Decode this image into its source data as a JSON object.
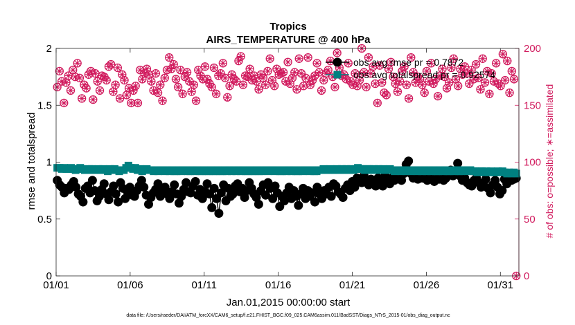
{
  "chart_data": {
    "type": "line",
    "title": "Tropics",
    "subtitle": "AIRS_TEMPERATURE @ 400 hPa",
    "xlabel": "Jan.01,2015 00:00:00 start",
    "ylabel": "rmse and totalspread",
    "ylabel_right": "# of obs: o=possible; ∗=assimilated",
    "x_ticks": [
      "01/01",
      "01/06",
      "01/11",
      "01/16",
      "01/21",
      "01/26",
      "01/31"
    ],
    "x_tick_days": [
      1,
      6,
      11,
      16,
      21,
      26,
      31
    ],
    "xlim": [
      1,
      32.25
    ],
    "y_ticks": [
      "0",
      "0.5",
      "1",
      "1.5",
      "2"
    ],
    "ylim": [
      0,
      2
    ],
    "y2_ticks": [
      "0",
      "50",
      "100",
      "150",
      "200"
    ],
    "y2lim": [
      0,
      200
    ],
    "legend_position": "top-right",
    "footnote": "data file: /Users/raeder/DAI/ATM_forcXX/CAM6_setup/f.e21.FHIST_BGC.f09_025.CAM6assim.011/BadSST/Diags_NTrS_2015-01/obs_diag_output.nc",
    "series": [
      {
        "name": "obs avg rmse pr = 0.7872",
        "axis": "left",
        "color": "#000000",
        "marker": "filled-circle",
        "values": [
          0.84,
          0.8,
          0.78,
          0.73,
          0.77,
          0.76,
          0.8,
          0.83,
          0.78,
          0.72,
          0.7,
          0.65,
          0.77,
          0.79,
          0.73,
          0.84,
          0.75,
          0.66,
          0.7,
          0.76,
          0.81,
          0.72,
          0.67,
          0.74,
          0.79,
          0.72,
          0.65,
          0.82,
          0.77,
          0.68,
          0.74,
          0.78,
          0.71,
          0.7,
          0.75,
          0.79,
          0.84,
          0.78,
          0.71,
          0.63,
          0.69,
          0.73,
          0.76,
          0.81,
          0.7,
          0.75,
          0.78,
          0.72,
          0.68,
          0.74,
          0.8,
          0.72,
          0.64,
          0.7,
          0.76,
          0.82,
          0.74,
          0.73,
          0.79,
          0.83,
          0.71,
          0.76,
          0.68,
          0.74,
          0.81,
          0.72,
          0.6,
          0.77,
          0.68,
          0.55,
          0.73,
          0.8,
          0.66,
          0.77,
          0.7,
          0.72,
          0.79,
          0.81,
          0.74,
          0.77,
          0.69,
          0.75,
          0.82,
          0.77,
          0.72,
          0.69,
          0.63,
          0.75,
          0.8,
          0.71,
          0.82,
          0.77,
          0.68,
          0.79,
          0.73,
          0.61,
          0.7,
          0.66,
          0.73,
          0.78,
          0.68,
          0.75,
          0.7,
          0.62,
          0.72,
          0.77,
          0.68,
          0.75,
          0.7,
          0.73,
          0.65,
          0.78,
          0.72,
          0.68,
          0.75,
          0.72,
          0.78,
          0.7,
          0.81,
          0.79,
          0.74,
          0.72,
          0.69,
          0.77,
          0.8,
          0.75,
          0.83,
          0.78,
          0.86,
          0.84,
          0.82,
          0.88,
          0.84,
          0.8,
          0.85,
          0.83,
          0.79,
          0.86,
          0.82,
          0.79,
          0.88,
          0.85,
          0.81,
          0.86,
          0.84,
          0.88,
          0.86,
          0.84,
          0.9,
          0.98,
          1.01,
          0.9,
          0.86,
          0.88,
          0.85,
          0.9,
          0.86,
          0.88,
          0.84,
          0.86,
          0.87,
          0.83,
          0.89,
          0.85,
          0.87,
          0.84,
          0.86,
          0.9,
          0.93,
          0.88,
          0.92,
          0.99,
          0.88,
          0.84,
          0.86,
          0.82,
          0.8,
          0.79,
          0.84,
          0.86,
          0.82,
          0.78,
          0.81,
          0.85,
          0.77,
          0.73,
          0.8,
          0.84,
          0.78,
          0.72,
          0.75,
          0.85,
          0.81,
          0.88,
          0.84,
          0.85,
          0.86
        ]
      },
      {
        "name": "obs avg totalspread pr = 0.92574",
        "axis": "left",
        "color": "#008080",
        "marker": "filled-square",
        "values": [
          0.95,
          0.95,
          0.94,
          0.95,
          0.94,
          0.94,
          0.95,
          0.94,
          0.93,
          0.94,
          0.95,
          0.94,
          0.93,
          0.93,
          0.94,
          0.94,
          0.93,
          0.93,
          0.94,
          0.93,
          0.94,
          0.93,
          0.92,
          0.94,
          0.93,
          0.94,
          0.93,
          0.92,
          0.93,
          0.93,
          0.95,
          0.97,
          0.95,
          0.94,
          0.95,
          0.93,
          0.94,
          0.92,
          0.93,
          0.94,
          0.93,
          0.93,
          0.92,
          0.93,
          0.92,
          0.93,
          0.93,
          0.92,
          0.93,
          0.92,
          0.93,
          0.92,
          0.92,
          0.93,
          0.92,
          0.93,
          0.93,
          0.92,
          0.92,
          0.93,
          0.92,
          0.93,
          0.92,
          0.92,
          0.93,
          0.92,
          0.92,
          0.93,
          0.92,
          0.92,
          0.93,
          0.92,
          0.92,
          0.93,
          0.92,
          0.93,
          0.92,
          0.93,
          0.92,
          0.93,
          0.92,
          0.93,
          0.92,
          0.92,
          0.93,
          0.92,
          0.92,
          0.93,
          0.92,
          0.92,
          0.93,
          0.93,
          0.92,
          0.93,
          0.93,
          0.92,
          0.93,
          0.92,
          0.92,
          0.93,
          0.92,
          0.93,
          0.92,
          0.93,
          0.92,
          0.92,
          0.93,
          0.92,
          0.93,
          0.93,
          0.92,
          0.93,
          0.92,
          0.92,
          0.93,
          0.93,
          0.94,
          0.93,
          0.93,
          0.94,
          0.93,
          0.93,
          0.94,
          0.93,
          0.94,
          0.93,
          0.94,
          0.93,
          0.94,
          0.93,
          0.94,
          0.95,
          0.94,
          0.94,
          0.93,
          0.94,
          0.94,
          0.93,
          0.94,
          0.93,
          0.94,
          0.93,
          0.94,
          0.93,
          0.93,
          0.94,
          0.93,
          0.92,
          0.93,
          0.93,
          0.92,
          0.93,
          0.92,
          0.93,
          0.92,
          0.93,
          0.93,
          0.92,
          0.93,
          0.92,
          0.93,
          0.92,
          0.93,
          0.92,
          0.93,
          0.92,
          0.92,
          0.93,
          0.92,
          0.93,
          0.92,
          0.92,
          0.93,
          0.92,
          0.93,
          0.92,
          0.92,
          0.93,
          0.93,
          0.92,
          0.93,
          0.92,
          0.92,
          0.91,
          0.92,
          0.92,
          0.91,
          0.92,
          0.91,
          0.92,
          0.91,
          0.91,
          0.92,
          0.91,
          0.92,
          0.91,
          0.9,
          0.91,
          0.9,
          0.91,
          0.9
        ]
      },
      {
        "name": "# obs possible",
        "axis": "right",
        "color": "#d11b5e",
        "marker": "circle",
        "values": [
          166,
          180,
          171,
          152,
          170,
          176,
          163,
          181,
          175,
          187,
          174,
          156,
          168,
          165,
          177,
          180,
          155,
          178,
          171,
          163,
          176,
          175,
          172,
          184,
          186,
          162,
          168,
          183,
          156,
          177,
          172,
          159,
          165,
          152,
          163,
          167,
          152,
          181,
          173,
          178,
          182,
          177,
          171,
          163,
          178,
          161,
          168,
          154,
          174,
          181,
          192,
          182,
          186,
          173,
          166,
          181,
          160,
          175,
          179,
          171,
          162,
          168,
          154,
          181,
          176,
          173,
          184,
          173,
          169,
          166,
          183,
          160,
          176,
          178,
          187,
          174,
          157,
          167,
          177,
          173,
          171,
          189,
          193,
          168,
          176,
          175,
          182,
          172,
          176,
          171,
          164,
          177,
          174,
          168,
          180,
          191,
          172,
          167,
          182,
          177,
          178,
          179,
          171,
          188,
          169,
          174,
          179,
          164,
          191,
          178,
          167,
          174,
          192,
          168,
          172,
          176,
          187,
          179,
          163,
          172,
          178,
          181,
          189,
          175,
          166,
          196,
          183,
          176,
          177,
          173,
          187,
          171,
          168,
          178,
          167,
          172,
          200,
          179,
          166,
          192,
          178,
          184,
          169,
          152,
          185,
          170,
          161,
          159,
          182,
          188,
          175,
          169,
          162,
          171,
          180,
          184,
          168,
          156,
          192,
          179,
          170,
          175,
          173,
          168,
          161,
          180,
          171,
          187,
          169,
          173,
          158,
          176,
          182,
          175,
          165,
          170,
          183,
          191,
          173,
          167,
          182,
          177,
          184,
          178,
          169,
          181,
          173,
          186,
          174,
          164,
          191,
          170,
          180,
          160,
          178,
          171,
          187,
          169,
          167,
          195,
          172,
          189,
          161,
          180,
          173,
          0
        ]
      },
      {
        "name": "# obs assimilated",
        "axis": "right",
        "color": "#d11b5e",
        "marker": "asterisk",
        "values": [
          166,
          180,
          171,
          152,
          170,
          176,
          163,
          181,
          175,
          187,
          174,
          156,
          168,
          165,
          177,
          180,
          155,
          178,
          171,
          163,
          176,
          175,
          172,
          184,
          186,
          162,
          168,
          183,
          156,
          177,
          172,
          159,
          165,
          152,
          163,
          167,
          152,
          181,
          173,
          178,
          182,
          177,
          171,
          163,
          178,
          161,
          168,
          154,
          174,
          181,
          192,
          182,
          186,
          173,
          166,
          181,
          160,
          175,
          179,
          171,
          162,
          168,
          154,
          181,
          176,
          173,
          184,
          173,
          169,
          166,
          183,
          160,
          176,
          178,
          187,
          174,
          157,
          167,
          177,
          173,
          171,
          189,
          193,
          168,
          176,
          175,
          182,
          172,
          176,
          171,
          164,
          177,
          174,
          168,
          180,
          191,
          172,
          167,
          182,
          177,
          178,
          179,
          171,
          188,
          169,
          174,
          179,
          164,
          191,
          178,
          167,
          174,
          192,
          168,
          172,
          176,
          187,
          179,
          163,
          172,
          178,
          181,
          189,
          175,
          166,
          196,
          183,
          176,
          177,
          173,
          187,
          171,
          168,
          178,
          167,
          172,
          200,
          179,
          166,
          192,
          178,
          184,
          169,
          152,
          185,
          170,
          161,
          159,
          182,
          188,
          175,
          169,
          162,
          171,
          180,
          184,
          168,
          156,
          192,
          179,
          170,
          175,
          173,
          168,
          161,
          180,
          171,
          187,
          169,
          173,
          158,
          176,
          182,
          175,
          165,
          170,
          183,
          191,
          173,
          167,
          182,
          177,
          184,
          178,
          169,
          181,
          173,
          186,
          174,
          164,
          191,
          170,
          180,
          160,
          178,
          171,
          187,
          169,
          167,
          195,
          172,
          189,
          161,
          180,
          173,
          0
        ]
      }
    ]
  }
}
